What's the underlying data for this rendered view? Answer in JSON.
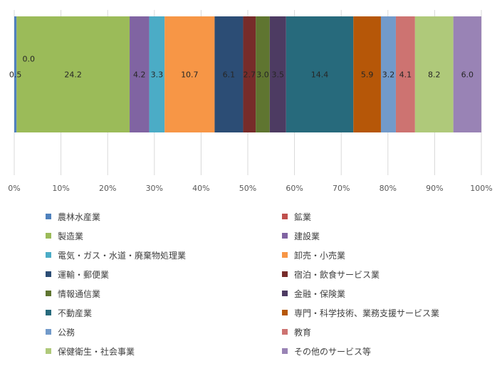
{
  "chart_data": {
    "type": "bar",
    "orientation": "horizontal",
    "stacked": "percent",
    "title": "",
    "xlabel": "",
    "ylabel": "",
    "xlim": [
      0,
      100
    ],
    "x_ticks": [
      "0%",
      "10%",
      "20%",
      "30%",
      "40%",
      "50%",
      "60%",
      "70%",
      "80%",
      "90%",
      "100%"
    ],
    "grid": "vertical",
    "legend_position": "bottom",
    "categories": [
      ""
    ],
    "series": [
      {
        "name": "農林水産業",
        "values": [
          0.5
        ],
        "label": "0.5",
        "color": "#4f81bd"
      },
      {
        "name": "鉱業",
        "values": [
          0.0
        ],
        "label": "0.0",
        "color": "#c0504d"
      },
      {
        "name": "製造業",
        "values": [
          24.2
        ],
        "label": "24.2",
        "color": "#9bbb59"
      },
      {
        "name": "建設業",
        "values": [
          4.2
        ],
        "label": "4.2",
        "color": "#8064a2"
      },
      {
        "name": "電気・ガス・水道・廃棄物処理業",
        "values": [
          3.3
        ],
        "label": "3.3",
        "color": "#4bacc6"
      },
      {
        "name": "卸売・小売業",
        "values": [
          10.7
        ],
        "label": "10.7",
        "color": "#f79646"
      },
      {
        "name": "運輸・郵便業",
        "values": [
          6.1
        ],
        "label": "6.1",
        "color": "#2c4d75"
      },
      {
        "name": "宿泊・飲食サービス業",
        "values": [
          2.7
        ],
        "label": "2.7",
        "color": "#772c2a"
      },
      {
        "name": "情報通信業",
        "values": [
          3.0
        ],
        "label": "3.0",
        "color": "#5f7530"
      },
      {
        "name": "金融・保険業",
        "values": [
          3.5
        ],
        "label": "3.5",
        "color": "#4d3b62"
      },
      {
        "name": "不動産業",
        "values": [
          14.4
        ],
        "label": "14.4",
        "color": "#276a7c"
      },
      {
        "name": "専門・科学技術、業務支援サービス業",
        "values": [
          5.9
        ],
        "label": "5.9",
        "color": "#b65708"
      },
      {
        "name": "公務",
        "values": [
          3.2
        ],
        "label": "3.2",
        "color": "#729aca"
      },
      {
        "name": "教育",
        "values": [
          4.1
        ],
        "label": "4.1",
        "color": "#cd7371"
      },
      {
        "name": "保健衛生・社会事業",
        "values": [
          8.2
        ],
        "label": "8.2",
        "color": "#afc97a"
      },
      {
        "name": "その他のサービス等",
        "values": [
          6.0
        ],
        "label": "6.0",
        "color": "#9983b5"
      }
    ]
  }
}
